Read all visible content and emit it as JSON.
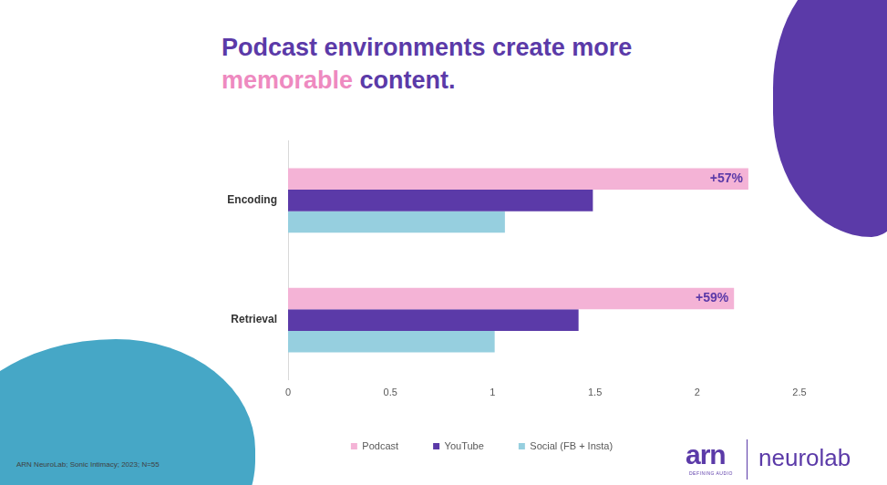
{
  "chart_data": {
    "type": "bar",
    "title": "Podcast environments create more memorable content.",
    "orientation": "horizontal",
    "categories": [
      "Encoding",
      "Retrieval"
    ],
    "series": [
      {
        "name": "Podcast",
        "color": "#f4b3d6",
        "values": [
          2.25,
          2.18
        ]
      },
      {
        "name": "YouTube",
        "color": "#5b3aa8",
        "values": [
          1.49,
          1.42
        ]
      },
      {
        "name": "Social (FB + Insta)",
        "color": "#96cfdf",
        "values": [
          1.06,
          1.01
        ]
      }
    ],
    "xlim": [
      0,
      2.5
    ],
    "xticks": [
      0,
      0.5,
      1,
      1.5,
      2,
      2.5
    ],
    "grid": false,
    "legend": "bottom",
    "annotations": [
      {
        "text": "+57%",
        "category": "Encoding",
        "series": "Podcast"
      },
      {
        "text": "+59%",
        "category": "Retrieval",
        "series": "Podcast"
      }
    ]
  },
  "page": {
    "title_emphasis": {
      "text": "memorable",
      "color": "#ee8ac0"
    },
    "source": "ARN NeuroLab; Sonic Intimacy; 2023; N=55",
    "logos": [
      "arn",
      "DEFINING AUDIO",
      "neurolab"
    ]
  }
}
